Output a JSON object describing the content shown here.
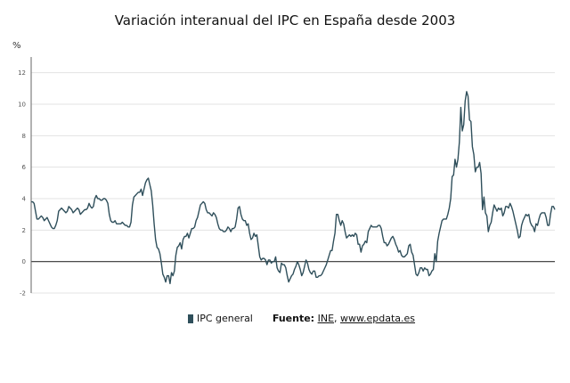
{
  "chart_data": {
    "type": "line",
    "title": "Variación interanual del IPC en España desde 2003",
    "ylabel": "%",
    "ylim": [
      -2,
      13
    ],
    "yticks": [
      -2,
      0,
      2,
      4,
      6,
      8,
      10,
      12
    ],
    "grid": true,
    "legend_position": "bottom",
    "series": [
      {
        "name": "IPC general",
        "color": "#2f4f5b",
        "values": [
          3.8,
          3.8,
          3.7,
          3.2,
          2.7,
          2.7,
          2.8,
          2.9,
          2.8,
          2.6,
          2.7,
          2.8,
          2.6,
          2.4,
          2.2,
          2.1,
          2.1,
          2.3,
          2.6,
          3.2,
          3.3,
          3.4,
          3.3,
          3.2,
          3.1,
          3.2,
          3.5,
          3.4,
          3.3,
          3.1,
          3.2,
          3.3,
          3.4,
          3.3,
          3.0,
          3.1,
          3.2,
          3.3,
          3.3,
          3.4,
          3.7,
          3.5,
          3.4,
          3.5,
          4.0,
          4.2,
          4.0,
          4.0,
          3.9,
          3.9,
          4.0,
          4.0,
          3.9,
          3.7,
          3.0,
          2.6,
          2.5,
          2.5,
          2.6,
          2.4,
          2.4,
          2.4,
          2.4,
          2.5,
          2.4,
          2.3,
          2.3,
          2.2,
          2.2,
          2.5,
          3.6,
          4.1,
          4.2,
          4.3,
          4.4,
          4.4,
          4.6,
          4.2,
          4.6,
          5.0,
          5.2,
          5.3,
          4.9,
          4.5,
          3.6,
          2.4,
          1.4,
          0.9,
          0.8,
          0.5,
          -0.1,
          -0.8,
          -1.0,
          -1.3,
          -0.9,
          -0.9,
          -1.4,
          -0.7,
          -0.9,
          -0.6,
          0.4,
          0.9,
          1.0,
          1.2,
          0.8,
          1.4,
          1.6,
          1.6,
          1.8,
          1.5,
          1.8,
          2.1,
          2.1,
          2.2,
          2.6,
          2.8,
          3.2,
          3.6,
          3.7,
          3.8,
          3.7,
          3.3,
          3.1,
          3.1,
          3.0,
          2.9,
          3.1,
          3.0,
          2.8,
          2.4,
          2.1,
          2.0,
          2.0,
          1.9,
          1.9,
          2.0,
          2.2,
          2.1,
          1.9,
          2.1,
          2.1,
          2.2,
          2.7,
          3.4,
          3.5,
          3.0,
          2.7,
          2.6,
          2.6,
          2.3,
          2.4,
          1.8,
          1.4,
          1.5,
          1.8,
          1.6,
          1.7,
          1.0,
          0.3,
          0.1,
          0.2,
          0.2,
          0.1,
          -0.2,
          0.1,
          0.1,
          -0.1,
          0.0,
          0.0,
          0.3,
          -0.4,
          -0.6,
          -0.7,
          -0.1,
          -0.2,
          -0.2,
          -0.4,
          -0.9,
          -1.3,
          -1.1,
          -0.9,
          -0.8,
          -0.5,
          -0.3,
          0.0,
          -0.2,
          -0.5,
          -0.9,
          -0.7,
          -0.3,
          0.1,
          -0.1,
          -0.5,
          -0.7,
          -0.8,
          -0.6,
          -0.6,
          -1.0,
          -1.0,
          -0.9,
          -0.9,
          -0.8,
          -0.6,
          -0.4,
          -0.2,
          0.1,
          0.4,
          0.7,
          0.7,
          1.3,
          1.8,
          3.0,
          3.0,
          2.6,
          2.3,
          2.6,
          2.4,
          1.9,
          1.5,
          1.6,
          1.7,
          1.6,
          1.7,
          1.6,
          1.8,
          1.7,
          1.1,
          1.1,
          0.6,
          1.0,
          1.1,
          1.3,
          1.2,
          1.9,
          2.1,
          2.3,
          2.2,
          2.2,
          2.2,
          2.2,
          2.3,
          2.3,
          2.1,
          1.6,
          1.2,
          1.2,
          1.0,
          1.1,
          1.3,
          1.5,
          1.6,
          1.4,
          1.1,
          0.9,
          0.6,
          0.7,
          0.4,
          0.3,
          0.3,
          0.4,
          0.5,
          1.0,
          1.1,
          0.6,
          0.4,
          -0.2,
          -0.8,
          -0.9,
          -0.7,
          -0.4,
          -0.4,
          -0.6,
          -0.4,
          -0.5,
          -0.5,
          -0.9,
          -0.8,
          -0.6,
          -0.5,
          0.5,
          0.0,
          1.3,
          1.8,
          2.2,
          2.6,
          2.7,
          2.7,
          2.7,
          3.0,
          3.4,
          4.0,
          5.4,
          5.5,
          6.5,
          6.0,
          6.5,
          7.6,
          9.8,
          8.3,
          8.7,
          10.2,
          10.8,
          10.5,
          9.0,
          8.9,
          7.3,
          6.8,
          5.7,
          6.0,
          6.0,
          6.3,
          5.6,
          3.3,
          4.1,
          3.1,
          2.9,
          1.9,
          2.3,
          2.5,
          3.1,
          3.6,
          3.4,
          3.2,
          3.4,
          3.3,
          3.4,
          2.9,
          3.1,
          3.5,
          3.5,
          3.4,
          3.7,
          3.5,
          3.2,
          2.8,
          2.4,
          2.0,
          1.5,
          1.6,
          2.3,
          2.6,
          2.8,
          3.0,
          2.9,
          3.0,
          2.5,
          2.3,
          2.2,
          1.9,
          2.4,
          2.3,
          2.7,
          3.0,
          3.1,
          3.1,
          3.1,
          2.8,
          2.3,
          2.3,
          3.0,
          3.5,
          3.5,
          3.3
        ]
      }
    ]
  },
  "legend": {
    "series_label": "IPC general",
    "source_label": "Fuente:",
    "source_link_1": "INE",
    "source_separator": ",",
    "source_link_2": "www.epdata.es"
  }
}
